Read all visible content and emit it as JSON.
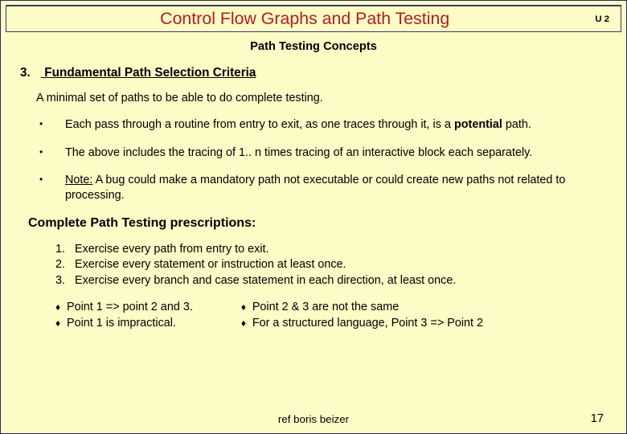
{
  "header": {
    "title": "Control Flow Graphs and Path Testing",
    "unit": "U 2"
  },
  "subtitle": "Path Testing Concepts",
  "section": {
    "num": "3.",
    "heading": "Fundamental Path Selection Criteria"
  },
  "intro": "A minimal set of paths to be able to do complete testing.",
  "bullets": {
    "b1_pre": "Each pass through a routine from entry to exit, as one traces through it, is a ",
    "b1_bold": "potential",
    "b1_post": " path.",
    "b2": "The above includes the tracing of 1.. n times tracing of an interactive block each separately.",
    "b3_note": "Note:",
    "b3_rest": " A bug could make a mandatory path not executable or could create new paths not related to processing."
  },
  "subheading": "Complete Path Testing prescriptions:",
  "prescriptions": {
    "p1": "Exercise every path from entry to exit.",
    "p2": "Exercise every statement or instruction at least once.",
    "p3": "Exercise every branch and case statement in each direction, at least once."
  },
  "points": {
    "left1": "Point 1 => point 2 and 3.",
    "left2": "Point 1 is impractical.",
    "right1": "Point 2 & 3 are not the same",
    "right2": "For a structured language, Point 3 => Point 2"
  },
  "footer": {
    "ref": "ref boris beizer",
    "page": "17"
  }
}
